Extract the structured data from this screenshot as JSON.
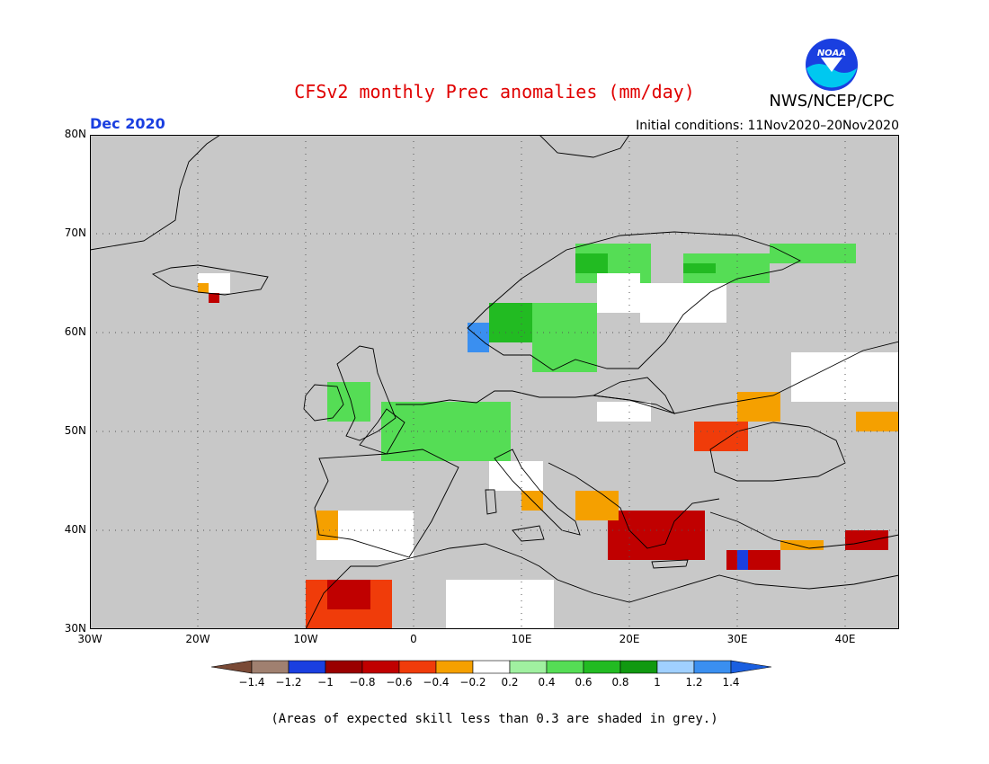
{
  "title": "CFSv2 monthly Prec anomalies (mm/day)",
  "organization": "NWS/NCEP/CPC",
  "logo_text": "NOAA",
  "month": "Dec 2020",
  "initial_conditions": "Initial conditions: 11Nov2020–20Nov2020",
  "footnote": "(Areas of expected skill less than 0.3 are shaded in grey.)",
  "map": {
    "lon_range": [
      -30,
      45
    ],
    "lat_range": [
      30,
      80
    ],
    "lat_labels": [
      "80N",
      "70N",
      "60N",
      "50N",
      "40N",
      "30N"
    ],
    "lat_values": [
      80,
      70,
      60,
      50,
      40,
      30
    ],
    "lon_labels": [
      "30W",
      "20W",
      "10W",
      "0",
      "10E",
      "20E",
      "30E",
      "40E"
    ],
    "lon_values": [
      -30,
      -20,
      -10,
      0,
      10,
      20,
      30,
      40
    ],
    "grey_skill_color": "#c8c8c8"
  },
  "colorbar": {
    "labels": [
      "−1.4",
      "−1.2",
      "−1",
      "−0.8",
      "−0.6",
      "−0.4",
      "−0.2",
      "0.2",
      "0.4",
      "0.6",
      "0.8",
      "1",
      "1.2",
      "1.4"
    ],
    "colors": [
      "#7a4a36",
      "#a08070",
      "#1a3fe0",
      "#9a0000",
      "#c00000",
      "#f03c0a",
      "#f5a000",
      "#ffffff",
      "#a0f0a0",
      "#55dd55",
      "#22bb22",
      "#119911",
      "#a0d0ff",
      "#3a8ff0",
      "#1a5fe0"
    ]
  },
  "anomaly_regions": [
    {
      "name": "norway-west-coast",
      "category": 1.2,
      "lon": [
        5,
        7
      ],
      "lat": [
        58,
        61
      ]
    },
    {
      "name": "norway-coast-green",
      "category": 0.6,
      "lon": [
        7,
        11
      ],
      "lat": [
        59,
        63
      ]
    },
    {
      "name": "sweden-band",
      "category": 0.4,
      "lon": [
        11,
        17
      ],
      "lat": [
        56,
        63
      ]
    },
    {
      "name": "north-scandinavia-green",
      "category": 0.4,
      "lon": [
        15,
        22
      ],
      "lat": [
        65,
        69
      ]
    },
    {
      "name": "north-scandinavia-dark",
      "category": 0.6,
      "lon": [
        15,
        18
      ],
      "lat": [
        66,
        68
      ]
    },
    {
      "name": "lapland-white",
      "category": -0.2,
      "lon": [
        17,
        21
      ],
      "lat": [
        62,
        66
      ]
    },
    {
      "name": "finland-white",
      "category": -0.2,
      "lon": [
        21,
        29
      ],
      "lat": [
        61,
        65
      ]
    },
    {
      "name": "kola-green",
      "category": 0.4,
      "lon": [
        25,
        33
      ],
      "lat": [
        65,
        68
      ]
    },
    {
      "name": "kola-darkgreen",
      "category": 0.6,
      "lon": [
        25,
        28
      ],
      "lat": [
        66,
        67
      ]
    },
    {
      "name": "north-russia-green",
      "category": 0.4,
      "lon": [
        33,
        41
      ],
      "lat": [
        67,
        69
      ]
    },
    {
      "name": "russia-east-white",
      "category": -0.2,
      "lon": [
        35,
        45
      ],
      "lat": [
        53,
        58
      ]
    },
    {
      "name": "iceland-white",
      "category": -0.2,
      "lon": [
        -20,
        -17
      ],
      "lat": [
        64,
        66
      ]
    },
    {
      "name": "iceland-orange",
      "category": -0.4,
      "lon": [
        -20,
        -19
      ],
      "lat": [
        64,
        65
      ]
    },
    {
      "name": "iceland-darkred",
      "category": -0.8,
      "lon": [
        -19,
        -18
      ],
      "lat": [
        63,
        64
      ]
    },
    {
      "name": "ireland-green",
      "category": 0.4,
      "lon": [
        -8,
        -4
      ],
      "lat": [
        51,
        55
      ]
    },
    {
      "name": "benelux-green",
      "category": 0.4,
      "lon": [
        -3,
        9
      ],
      "lat": [
        47,
        53
      ]
    },
    {
      "name": "iberia-white",
      "category": -0.2,
      "lon": [
        -9,
        0
      ],
      "lat": [
        37,
        42
      ]
    },
    {
      "name": "iberia-orange",
      "category": -0.4,
      "lon": [
        -9,
        -7
      ],
      "lat": [
        39,
        42
      ]
    },
    {
      "name": "morocco-red",
      "category": -0.6,
      "lon": [
        -10,
        -2
      ],
      "lat": [
        30,
        35
      ]
    },
    {
      "name": "morocco-darkred",
      "category": -0.8,
      "lon": [
        -8,
        -4
      ],
      "lat": [
        32,
        35
      ]
    },
    {
      "name": "balkans-darkred",
      "category": -0.8,
      "lon": [
        18,
        27
      ],
      "lat": [
        37,
        42
      ]
    },
    {
      "name": "adriatic-orange",
      "category": -0.4,
      "lon": [
        15,
        19
      ],
      "lat": [
        41,
        44
      ]
    },
    {
      "name": "italy-orange",
      "category": -0.4,
      "lon": [
        10,
        12
      ],
      "lat": [
        42,
        45
      ]
    },
    {
      "name": "turkey-darkred",
      "category": -0.8,
      "lon": [
        29,
        34
      ],
      "lat": [
        36,
        38
      ]
    },
    {
      "name": "turkey-orange",
      "category": -0.4,
      "lon": [
        34,
        38
      ],
      "lat": [
        38,
        39
      ]
    },
    {
      "name": "ukraine-red",
      "category": -0.6,
      "lon": [
        26,
        31
      ],
      "lat": [
        48,
        51
      ]
    },
    {
      "name": "ukraine-orange",
      "category": -0.4,
      "lon": [
        30,
        34
      ],
      "lat": [
        51,
        54
      ]
    },
    {
      "name": "caucasus-orange",
      "category": -0.4,
      "lon": [
        41,
        45
      ],
      "lat": [
        50,
        52
      ]
    },
    {
      "name": "east-turkey-darkred",
      "category": -0.8,
      "lon": [
        40,
        44
      ],
      "lat": [
        38,
        40
      ]
    },
    {
      "name": "north-africa-white",
      "category": -0.2,
      "lon": [
        3,
        13
      ],
      "lat": [
        30,
        35
      ]
    },
    {
      "name": "alps-white",
      "category": -0.2,
      "lon": [
        7,
        12
      ],
      "lat": [
        44,
        47
      ]
    },
    {
      "name": "poland-white",
      "category": -0.2,
      "lon": [
        17,
        22
      ],
      "lat": [
        51,
        53
      ]
    },
    {
      "name": "cyprus-blue",
      "category": -1.2,
      "lon": [
        30,
        31
      ],
      "lat": [
        36,
        38
      ]
    }
  ]
}
